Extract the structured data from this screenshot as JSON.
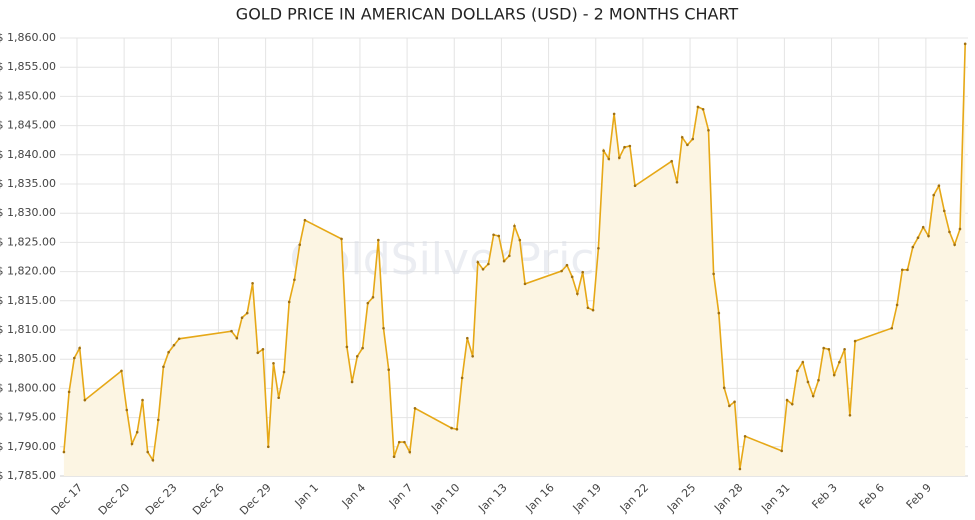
{
  "chart_data": {
    "type": "line",
    "title": "GOLD PRICE IN AMERICAN DOLLARS (USD) - 2 MONTHS CHART",
    "watermark": "GoldSilverPrice.eu",
    "x": [
      -0.83,
      -0.5,
      -0.17,
      0.17,
      0.5,
      2.83,
      3.17,
      3.5,
      3.83,
      4.17,
      4.5,
      4.83,
      5.17,
      5.5,
      5.83,
      6.17,
      6.5,
      9.83,
      10.17,
      10.5,
      10.83,
      11.17,
      11.5,
      11.83,
      12.17,
      12.5,
      12.83,
      13.17,
      13.5,
      13.83,
      14.17,
      14.5,
      16.83,
      17.17,
      17.5,
      17.83,
      18.17,
      18.5,
      18.83,
      19.17,
      19.5,
      19.83,
      20.17,
      20.5,
      20.83,
      21.17,
      21.5,
      23.83,
      24.17,
      24.5,
      24.83,
      25.17,
      25.5,
      25.83,
      26.17,
      26.5,
      26.83,
      27.17,
      27.5,
      27.83,
      28.17,
      28.5,
      30.83,
      31.17,
      31.5,
      31.83,
      32.17,
      32.5,
      32.83,
      33.17,
      33.5,
      33.83,
      34.17,
      34.5,
      34.83,
      35.17,
      35.5,
      37.83,
      38.17,
      38.5,
      38.83,
      39.17,
      39.5,
      39.83,
      40.17,
      40.5,
      40.83,
      41.17,
      41.5,
      41.83,
      42.17,
      42.5,
      44.83,
      45.17,
      45.5,
      45.83,
      46.17,
      46.5,
      46.83,
      47.17,
      47.5,
      47.83,
      48.17,
      48.5,
      48.83,
      49.17,
      49.5,
      51.83,
      52.17,
      52.5,
      52.83,
      53.17,
      53.5,
      53.83,
      54.17,
      54.5,
      54.83,
      55.17,
      55.5,
      55.83,
      56.17,
      56.5
    ],
    "series": [
      {
        "name": "Gold price",
        "color": "#e6a817",
        "values": [
          1789.1,
          1799.4,
          1805.2,
          1806.9,
          1798.0,
          1803.0,
          1796.3,
          1790.5,
          1792.5,
          1798.0,
          1789.1,
          1787.7,
          1794.6,
          1803.7,
          1806.2,
          1807.4,
          1808.5,
          1809.8,
          1808.6,
          1812.1,
          1812.9,
          1818.0,
          1806.1,
          1806.7,
          1790.0,
          1804.3,
          1798.4,
          1802.8,
          1814.8,
          1818.6,
          1824.6,
          1828.8,
          1825.6,
          1807.1,
          1801.1,
          1805.5,
          1806.9,
          1814.6,
          1815.6,
          1825.4,
          1810.3,
          1803.2,
          1788.3,
          1790.8,
          1790.8,
          1789.1,
          1796.6,
          1793.2,
          1793.0,
          1801.8,
          1808.6,
          1805.5,
          1821.6,
          1820.4,
          1821.3,
          1826.3,
          1826.1,
          1821.8,
          1822.7,
          1827.8,
          1825.4,
          1817.9,
          1820.1,
          1821.1,
          1819.1,
          1816.2,
          1819.9,
          1813.8,
          1813.4,
          1824.0,
          1840.7,
          1839.3,
          1847.0,
          1839.5,
          1841.3,
          1841.5,
          1834.7,
          1838.9,
          1835.3,
          1843.0,
          1841.7,
          1842.7,
          1848.2,
          1847.8,
          1844.2,
          1819.6,
          1812.9,
          1800.1,
          1797.0,
          1797.7,
          1786.2,
          1791.8,
          1789.3,
          1798.0,
          1797.3,
          1803.0,
          1804.5,
          1801.1,
          1798.7,
          1801.4,
          1806.9,
          1806.7,
          1802.3,
          1804.5,
          1806.7,
          1795.4,
          1808.1,
          1810.3,
          1814.3,
          1820.3,
          1820.3,
          1824.2,
          1825.8,
          1827.6,
          1826.1,
          1833.1,
          1834.7,
          1830.4,
          1826.8,
          1824.6,
          1827.3,
          1859.0
        ]
      }
    ],
    "fill_color": "#fcf5e3",
    "xlim": [
      -1.08,
      56.68
    ],
    "xticks": [
      {
        "value": 0,
        "label": "Dec 17"
      },
      {
        "value": 3,
        "label": "Dec 20"
      },
      {
        "value": 6,
        "label": "Dec 23"
      },
      {
        "value": 9,
        "label": "Dec 26"
      },
      {
        "value": 12,
        "label": "Dec 29"
      },
      {
        "value": 15,
        "label": "Jan 1"
      },
      {
        "value": 18,
        "label": "Jan 4"
      },
      {
        "value": 21,
        "label": "Jan 7"
      },
      {
        "value": 24,
        "label": "Jan 10"
      },
      {
        "value": 27,
        "label": "Jan 13"
      },
      {
        "value": 30,
        "label": "Jan 16"
      },
      {
        "value": 33,
        "label": "Jan 19"
      },
      {
        "value": 36,
        "label": "Jan 22"
      },
      {
        "value": 39,
        "label": "Jan 25"
      },
      {
        "value": 42,
        "label": "Jan 28"
      },
      {
        "value": 45,
        "label": "Jan 31"
      },
      {
        "value": 48,
        "label": "Feb 3"
      },
      {
        "value": 51,
        "label": "Feb 6"
      },
      {
        "value": 54,
        "label": "Feb 9"
      }
    ],
    "ylim": [
      1785,
      1860
    ],
    "yticks": [
      {
        "value": 1785,
        "label": "$ 1,785.00"
      },
      {
        "value": 1790,
        "label": "$ 1,790.00"
      },
      {
        "value": 1795,
        "label": "$ 1,795.00"
      },
      {
        "value": 1800,
        "label": "$ 1,800.00"
      },
      {
        "value": 1805,
        "label": "$ 1,805.00"
      },
      {
        "value": 1810,
        "label": "$ 1,810.00"
      },
      {
        "value": 1815,
        "label": "$ 1,815.00"
      },
      {
        "value": 1820,
        "label": "$ 1,820.00"
      },
      {
        "value": 1825,
        "label": "$ 1,825.00"
      },
      {
        "value": 1830,
        "label": "$ 1,830.00"
      },
      {
        "value": 1835,
        "label": "$ 1,835.00"
      },
      {
        "value": 1840,
        "label": "$ 1,840.00"
      },
      {
        "value": 1845,
        "label": "$ 1,845.00"
      },
      {
        "value": 1850,
        "label": "$ 1,850.00"
      },
      {
        "value": 1855,
        "label": "$ 1,855.00"
      },
      {
        "value": 1860,
        "label": "$ 1,860.00"
      }
    ],
    "grid": true
  }
}
